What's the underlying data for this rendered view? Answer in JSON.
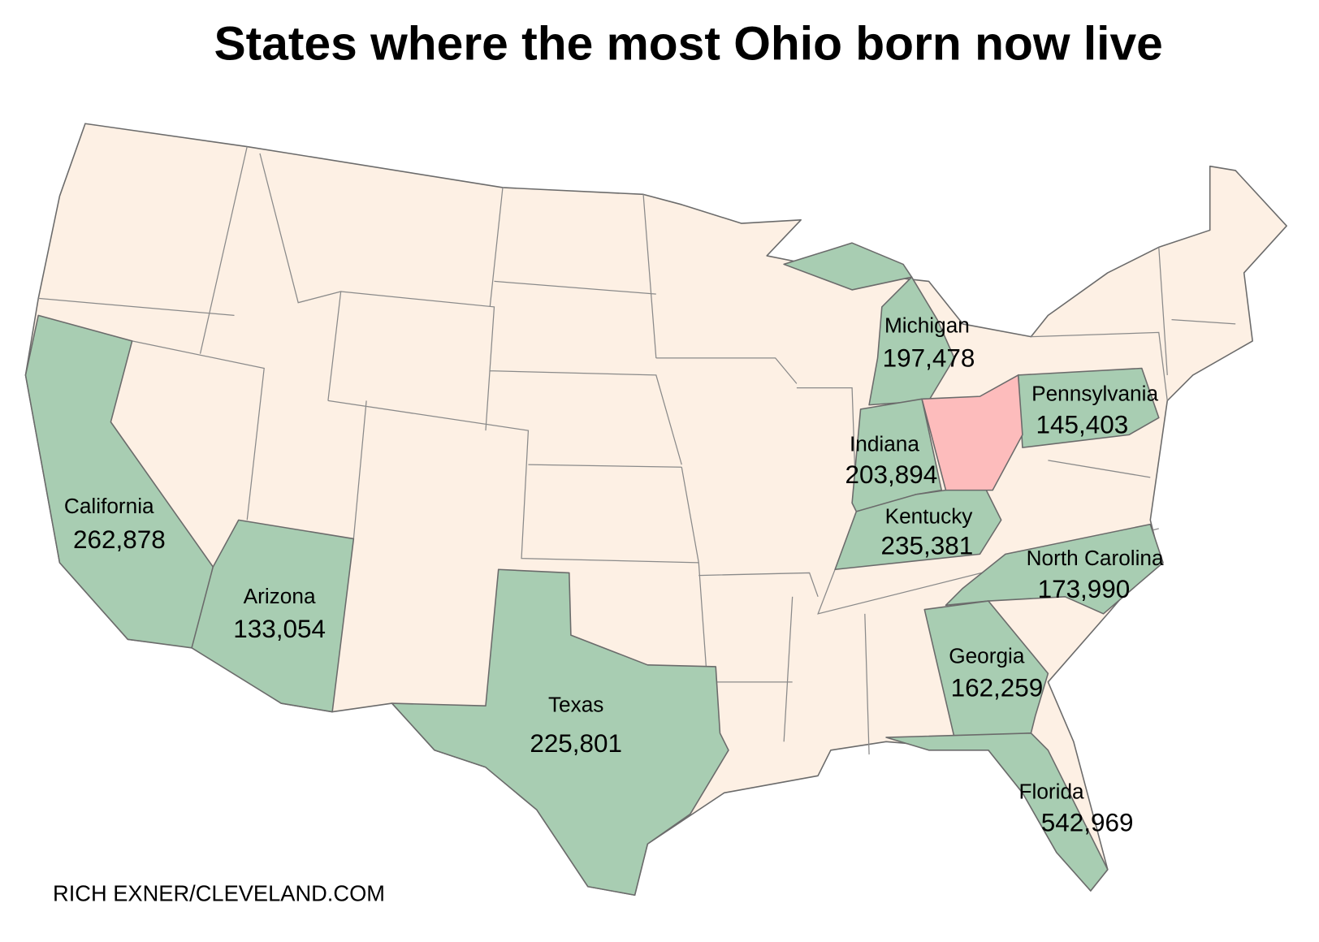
{
  "title": "States where the most Ohio born now live",
  "credit": "RICH EXNER/CLEVELAND.COM",
  "states": [
    {
      "name": "California",
      "value": "262,878"
    },
    {
      "name": "Arizona",
      "value": "133,054"
    },
    {
      "name": "Texas",
      "value": "225,801"
    },
    {
      "name": "Michigan",
      "value": "197,478"
    },
    {
      "name": "Indiana",
      "value": "203,894"
    },
    {
      "name": "Kentucky",
      "value": "235,381"
    },
    {
      "name": "Pennsylvania",
      "value": "145,403"
    },
    {
      "name": "North Carolina",
      "value": "173,990"
    },
    {
      "name": "Georgia",
      "value": "162,259"
    },
    {
      "name": "Florida",
      "value": "542,969"
    }
  ]
}
